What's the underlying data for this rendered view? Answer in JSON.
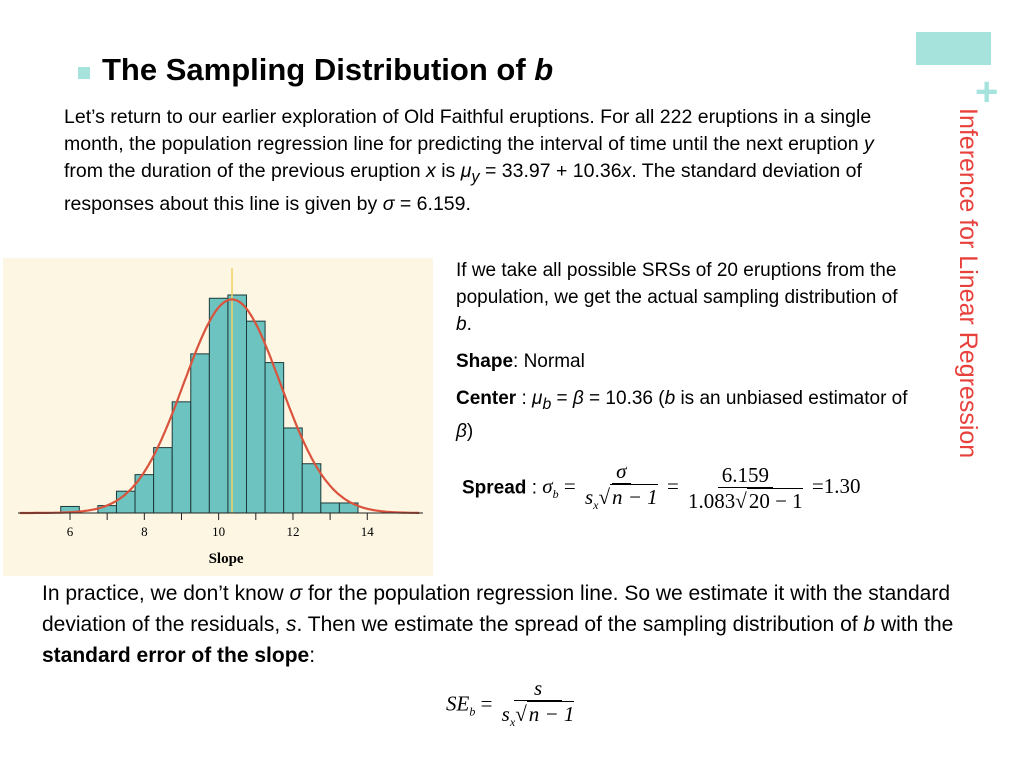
{
  "side_title": "Inference for Linear Regression",
  "title": "The Sampling Distribution of ",
  "title_var": "b",
  "intro": {
    "t1": "Let’s return to our earlier exploration of Old Faithful eruptions. For all 222 eruptions in a single month, the population regression line for predicting the interval of time until the next eruption ",
    "y": "y",
    "t2": " from the duration of the previous eruption ",
    "x": "x",
    "t3": " is ",
    "mu": "μ",
    "sub": "y",
    "t4": " = 33.97 + 10.36",
    "x2": "x",
    "t5": ". The standard deviation of responses about this line is given by ",
    "sigma": "σ",
    "t6": " = 6.159."
  },
  "right": {
    "p1": "If we take all possible SRSs of 20 eruptions from the population, we get the actual sampling distribution of ",
    "p1_var": "b",
    "p1_end": ".",
    "shape_label": "Shape",
    "shape_value": ": Normal",
    "center_label": "Center",
    "center_t1": " : ",
    "mu": "μ",
    "mu_sub": "b",
    "center_t2": " = ",
    "beta": "β",
    "center_t3": " = 10.36 (",
    "b": "b",
    "center_t4": " is an unbiased estimator of ",
    "beta2": "β",
    "center_t5": ")",
    "spread_label": "Spread",
    "spread_colon": " : ",
    "sigma_b": "σ",
    "sigma_b_sub": "b",
    "eq": "=",
    "sigma": "σ",
    "sx": "s",
    "sx_sub": "x",
    "sqrt": "√",
    "n1": "n − 1",
    "eq2": "=",
    "num2": "6.159",
    "den2a": "1.083",
    "den2b": "20 − 1",
    "eq3": "=",
    "result": "1.30"
  },
  "bottom": {
    "t1": "In practice, we don’t know ",
    "sigma": "σ",
    "t2": " for the population regression line. So we estimate it with the standard deviation of the residuals, ",
    "s": "s",
    "t3": ". Then we estimate the spread of the sampling distribution of ",
    "b": "b",
    "t4": " with the ",
    "bold": "standard error of the slope",
    "t5": ":"
  },
  "se_formula": {
    "se": "SE",
    "se_sub": "b",
    "eq": "=",
    "num": "s",
    "sx": "s",
    "sx_sub": "x",
    "sqrt": "√",
    "n1": "n − 1"
  },
  "colors": {
    "accent": "#a6e3dd",
    "side_title": "#e8413c",
    "bars": "#6cc3bf",
    "curve": "#d9533d",
    "mean_line": "#f0d060",
    "chart_bg": "#fcf6e3"
  },
  "chart_data": {
    "type": "bar",
    "xlabel": "Slope",
    "ylabel": "",
    "xlim": [
      4.6,
      15.5
    ],
    "x_ticks": [
      6,
      8,
      10,
      12,
      14
    ],
    "bin_width": 0.5,
    "bin_starts": [
      5.75,
      6.25,
      6.75,
      7.25,
      7.75,
      8.25,
      8.75,
      9.25,
      9.75,
      10.25,
      10.75,
      11.25,
      11.75,
      12.25,
      12.75,
      13.25
    ],
    "relative_heights": [
      3,
      0,
      3.4,
      10,
      17.6,
      30,
      51,
      73,
      98.5,
      100,
      88,
      69,
      39,
      22.6,
      4.6,
      4.6
    ],
    "normal_curve": {
      "mean": 10.36,
      "sd": 1.3
    },
    "mean_line": 10.36,
    "grid": false
  }
}
